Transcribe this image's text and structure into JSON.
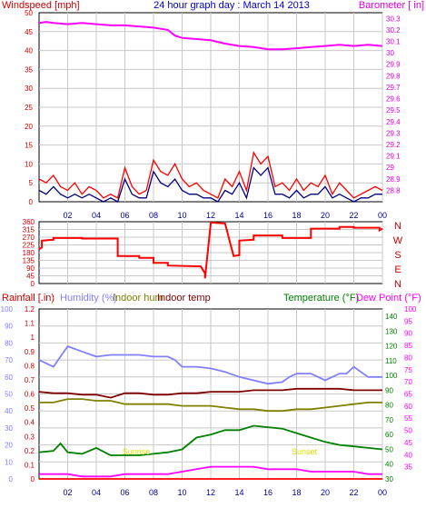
{
  "page": {
    "title": "24 hour graph day : March 14 2013",
    "background": "#ffffff"
  },
  "chart_data": [
    {
      "type": "line",
      "panel": "wind-barometer",
      "title": "24 hour graph day : March 14 2013",
      "ylabel": "Windspeed [mph]",
      "ylabel_right": "Barometer [ in]",
      "x_ticks": [
        "02",
        "04",
        "06",
        "08",
        "10",
        "12",
        "14",
        "16",
        "18",
        "20",
        "22",
        "00"
      ],
      "y_left": {
        "min": 0,
        "max": 50,
        "ticks": [
          "0",
          "5",
          "10",
          "15",
          "20",
          "25",
          "30",
          "35",
          "40",
          "45",
          "50"
        ]
      },
      "y_right": {
        "min": 28.7,
        "max": 30.35,
        "ticks": [
          "28.8",
          "28.9",
          "29",
          "29.1",
          "29.2",
          "29.3",
          "29.4",
          "29.5",
          "29.6",
          "29.7",
          "29.8",
          "29.9",
          "30",
          "30.1",
          "30.2",
          "30.3"
        ]
      },
      "grid": true,
      "series": [
        {
          "color": "#ff00ff",
          "axis": "right",
          "x": [
            0,
            0.5,
            1,
            2,
            3,
            4,
            5,
            6,
            7,
            8,
            9,
            9.5,
            10,
            11,
            12,
            13,
            14,
            15,
            16,
            17,
            18,
            19,
            20,
            21,
            22,
            23,
            24
          ],
          "values": [
            30.26,
            30.27,
            30.26,
            30.25,
            30.26,
            30.25,
            30.24,
            30.24,
            30.23,
            30.22,
            30.2,
            30.15,
            30.13,
            30.12,
            30.11,
            30.08,
            30.06,
            30.05,
            30.03,
            30.03,
            30.04,
            30.05,
            30.06,
            30.07,
            30.06,
            30.07,
            30.06
          ]
        },
        {
          "color": "#ff0000",
          "axis": "left",
          "x": [
            0,
            0.5,
            1,
            1.5,
            2,
            2.5,
            3,
            3.5,
            4,
            4.5,
            5,
            5.5,
            6,
            6.5,
            7,
            7.5,
            8,
            8.5,
            9,
            9.5,
            10,
            10.5,
            11,
            11.5,
            12,
            12.5,
            13,
            13.5,
            14,
            14.5,
            15,
            15.5,
            16,
            16.5,
            17,
            17.5,
            18,
            18.5,
            19,
            19.5,
            20,
            20.5,
            21,
            21.5,
            22,
            22.5,
            23,
            23.5,
            24
          ],
          "values": [
            6,
            5,
            7,
            4,
            3,
            5,
            2,
            4,
            3,
            1,
            2,
            1,
            9,
            4,
            2,
            3,
            11,
            8,
            7,
            10,
            6,
            4,
            5,
            3,
            2,
            1,
            6,
            4,
            8,
            3,
            13,
            10,
            12,
            4,
            5,
            3,
            6,
            3,
            5,
            4,
            7,
            2,
            5,
            3,
            1,
            2,
            3,
            4,
            3
          ]
        },
        {
          "color": "#000080",
          "axis": "left",
          "x": [
            0,
            0.5,
            1,
            1.5,
            2,
            2.5,
            3,
            3.5,
            4,
            4.5,
            5,
            5.5,
            6,
            6.5,
            7,
            7.5,
            8,
            8.5,
            9,
            9.5,
            10,
            10.5,
            11,
            11.5,
            12,
            12.5,
            13,
            13.5,
            14,
            14.5,
            15,
            15.5,
            16,
            16.5,
            17,
            17.5,
            18,
            18.5,
            19,
            19.5,
            20,
            20.5,
            21,
            21.5,
            22,
            22.5,
            23,
            23.5,
            24
          ],
          "values": [
            3,
            2,
            4,
            2,
            1,
            2,
            1,
            2,
            1,
            0,
            1,
            0,
            6,
            2,
            1,
            1,
            8,
            5,
            4,
            6,
            3,
            2,
            2,
            1,
            1,
            0,
            3,
            2,
            5,
            1,
            9,
            7,
            9,
            2,
            2,
            1,
            3,
            1,
            2,
            2,
            4,
            1,
            2,
            1,
            0,
            1,
            1,
            2,
            2
          ]
        }
      ]
    },
    {
      "type": "line",
      "panel": "wind-direction",
      "ylabel_right": "N W S E N",
      "x_ticks": [
        "02",
        "04",
        "06",
        "08",
        "10",
        "12",
        "14",
        "16",
        "18",
        "20",
        "22",
        "00"
      ],
      "y_left": {
        "min": 0,
        "max": 360,
        "ticks": [
          "0",
          "45",
          "90",
          "135",
          "180",
          "225",
          "270",
          "315",
          "360"
        ]
      },
      "compass": [
        "N",
        "W",
        "S",
        "E",
        "N"
      ],
      "grid": true,
      "series": [
        {
          "color": "#ff0000",
          "x": [
            0,
            0.2,
            0.2,
            1,
            1,
            3,
            3,
            5.5,
            5.5,
            7,
            7,
            8,
            8,
            9,
            9,
            11.3,
            11.6,
            11.6,
            12,
            12,
            13,
            13,
            13.6,
            14,
            14,
            15,
            15,
            17,
            17,
            19,
            19,
            21,
            21,
            22,
            22,
            23.8,
            23.8,
            24
          ],
          "values": [
            200,
            210,
            250,
            255,
            265,
            265,
            262,
            262,
            160,
            160,
            150,
            150,
            120,
            120,
            105,
            100,
            60,
            30,
            350,
            355,
            350,
            350,
            160,
            165,
            250,
            255,
            280,
            280,
            265,
            265,
            320,
            320,
            330,
            330,
            325,
            325,
            310,
            320
          ]
        }
      ]
    },
    {
      "type": "line",
      "panel": "temp-humidity-rain",
      "labels": [
        "Rainfall [.in)",
        "Humidity (%)",
        "Indoor hum",
        "Indoor temp",
        "Temperature (°F)",
        "Dew Point (°F)"
      ],
      "annotations": [
        "Sunrise",
        "Sunset"
      ],
      "x_ticks": [
        "02",
        "04",
        "06",
        "08",
        "10",
        "12",
        "14",
        "16",
        "18",
        "20",
        "22",
        "00"
      ],
      "y_rain": {
        "min": 0,
        "max": 1.2,
        "ticks": [
          "0",
          "0.1",
          "0.2",
          "0.3",
          "0.4",
          "0.5",
          "0.6",
          "0.7",
          "0.8",
          "0.9",
          "1",
          "1.1",
          "1.2"
        ]
      },
      "y_humidity": {
        "min": 0,
        "max": 100,
        "ticks": [
          "0",
          "10",
          "20",
          "30",
          "40",
          "50",
          "60",
          "70",
          "80",
          "90",
          "100"
        ]
      },
      "y_temp": {
        "min": 30,
        "max": 145,
        "ticks": [
          "30",
          "40",
          "50",
          "60",
          "70",
          "80",
          "90",
          "100",
          "110",
          "120",
          "130",
          "140"
        ]
      },
      "y_dew": {
        "min": 30,
        "max": 100,
        "ticks": [
          "35",
          "40",
          "45",
          "50",
          "55",
          "60",
          "65",
          "70",
          "75",
          "80",
          "85",
          "90",
          "95",
          "100"
        ]
      },
      "grid": true,
      "series": [
        {
          "name": "Humidity (%)",
          "color": "#8080ff",
          "axis": "humidity",
          "x": [
            0,
            0.5,
            1,
            1.5,
            2,
            3,
            4,
            5,
            6,
            7,
            8,
            9,
            9.5,
            10,
            11,
            12,
            13,
            14,
            15,
            16,
            17,
            17.5,
            18,
            19,
            20,
            21,
            21.5,
            22,
            23,
            24
          ],
          "values": [
            70,
            68,
            66,
            72,
            78,
            75,
            72,
            73,
            73,
            73,
            72,
            72,
            70,
            66,
            66,
            65,
            63,
            60,
            58,
            56,
            57,
            60,
            62,
            62,
            58,
            62,
            62,
            66,
            60,
            60
          ]
        },
        {
          "name": "Indoor temp",
          "color": "#800000",
          "axis": "temp",
          "x": [
            0,
            1,
            2,
            3,
            4,
            5,
            6,
            7,
            8,
            9,
            10,
            11,
            12,
            13,
            14,
            15,
            16,
            17,
            18,
            19,
            20,
            21,
            22,
            23,
            24
          ],
          "values": [
            89,
            88,
            88,
            87,
            87,
            85,
            88,
            88,
            87,
            87,
            88,
            88,
            89,
            89,
            89,
            90,
            90,
            90,
            91,
            91,
            91,
            91,
            90,
            90,
            90
          ]
        },
        {
          "name": "Indoor hum",
          "color": "#808000",
          "axis": "humidity",
          "x": [
            0,
            1,
            2,
            3,
            4,
            5,
            6,
            7,
            8,
            9,
            10,
            11,
            12,
            13,
            14,
            15,
            16,
            17,
            18,
            19,
            20,
            21,
            22,
            23,
            24
          ],
          "values": [
            45,
            45,
            47,
            47,
            46,
            46,
            44,
            44,
            44,
            44,
            43,
            43,
            43,
            42,
            41,
            41,
            40,
            40,
            41,
            41,
            42,
            43,
            44,
            45,
            45
          ]
        },
        {
          "name": "Temperature (°F)",
          "color": "#008000",
          "axis": "temp",
          "x": [
            0,
            1,
            1.5,
            2,
            3,
            4,
            5,
            6,
            7,
            8,
            9,
            10,
            11,
            12,
            13,
            14,
            15,
            16,
            17,
            18,
            19,
            20,
            21,
            22,
            23,
            24
          ],
          "values": [
            48,
            49,
            54,
            48,
            47,
            51,
            46,
            46,
            46,
            47,
            48,
            50,
            58,
            60,
            63,
            63,
            66,
            65,
            64,
            61,
            58,
            55,
            53,
            52,
            51,
            50
          ]
        },
        {
          "name": "Dew Point (°F)",
          "color": "#ff00ff",
          "axis": "dew",
          "x": [
            0,
            1,
            2,
            3,
            4,
            5,
            6,
            7,
            8,
            9,
            10,
            11,
            12,
            13,
            14,
            15,
            16,
            17,
            18,
            19,
            20,
            21,
            22,
            23,
            24
          ],
          "values": [
            32,
            32,
            32,
            31,
            31,
            31,
            32,
            32,
            32,
            32,
            33,
            34,
            35,
            35,
            35,
            35,
            34,
            34,
            34,
            33,
            33,
            33,
            33,
            32,
            32
          ]
        },
        {
          "name": "Rainfall [.in)",
          "color": "#ff0000",
          "axis": "rain",
          "x": [
            0,
            24
          ],
          "values": [
            0,
            0
          ]
        }
      ]
    }
  ]
}
